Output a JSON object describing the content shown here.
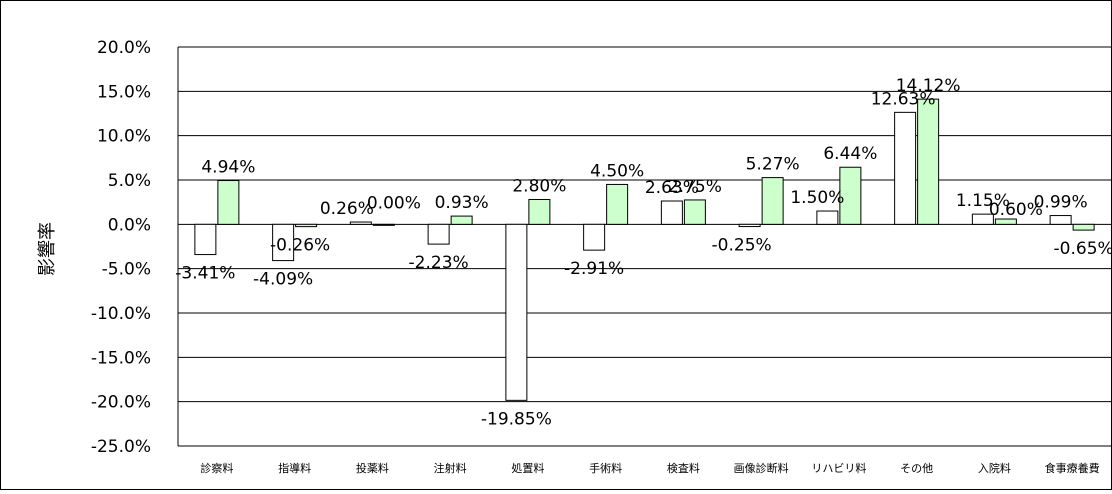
{
  "chart_data": {
    "type": "bar",
    "title": "",
    "xlabel": "",
    "ylabel": "影響率",
    "ylim": [
      -25,
      20
    ],
    "ytick_step": 5,
    "yticks": [
      "20.0%",
      "15.0%",
      "10.0%",
      "5.0%",
      "0.0%",
      "-5.0%",
      "-10.0%",
      "-15.0%",
      "-20.0%",
      "-25.0%"
    ],
    "grid": true,
    "legend": "none",
    "categories": [
      "診察料",
      "指導料",
      "投薬料",
      "注射料",
      "処置料",
      "手術料",
      "検査料",
      "画像診断料",
      "リハビリ料",
      "その他",
      "入院料",
      "食事療養費"
    ],
    "series": [
      {
        "color": "#ffffff",
        "values": [
          -3.41,
          -4.09,
          0.26,
          -2.23,
          -19.85,
          -2.91,
          2.63,
          -0.25,
          1.5,
          12.63,
          1.15,
          0.99
        ],
        "labels": [
          "-3.41%",
          "-4.09%",
          "0.26%",
          "-2.23%",
          "-19.85%",
          "-2.91%",
          "2.63%",
          "-0.25%",
          "1.50%",
          "12.63%",
          "1.15%",
          "0.99%"
        ]
      },
      {
        "color": "#ccffcc",
        "values": [
          4.94,
          -0.26,
          0.0,
          0.93,
          2.8,
          4.5,
          2.75,
          5.27,
          6.44,
          14.12,
          0.6,
          -0.65
        ],
        "labels": [
          "4.94%",
          "-0.26%",
          "0.00%",
          "0.93%",
          "2.80%",
          "4.50%",
          "2.75%",
          "5.27%",
          "6.44%",
          "14.12%",
          "0.60%",
          "-0.65%"
        ]
      }
    ]
  }
}
